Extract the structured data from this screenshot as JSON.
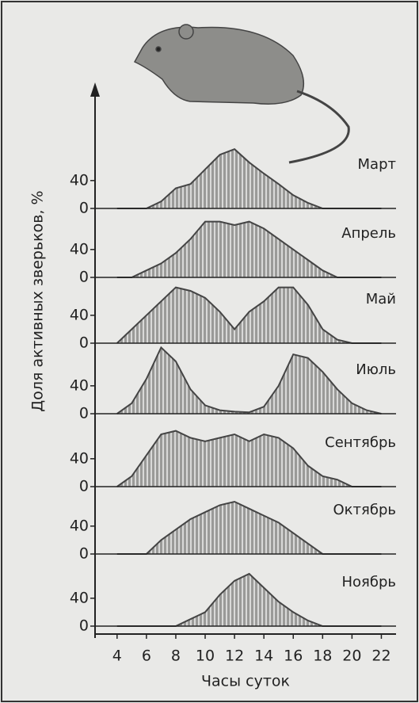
{
  "chart_data": {
    "type": "area",
    "ylabel": "Доля активных зверьков, %",
    "xlabel": "Часы суток",
    "x": [
      4,
      5,
      6,
      7,
      8,
      9,
      10,
      11,
      12,
      13,
      14,
      15,
      16,
      17,
      18,
      19,
      20,
      21,
      22
    ],
    "xlim": [
      2.5,
      23
    ],
    "xticks": [
      4,
      6,
      8,
      10,
      12,
      14,
      16,
      18,
      20,
      22
    ],
    "ylim": [
      0,
      100
    ],
    "yticks": [
      0,
      40
    ],
    "color": "#444",
    "series": [
      {
        "name": "Март",
        "values": [
          0,
          0,
          0,
          10,
          29,
          35,
          56,
          77,
          85,
          66,
          50,
          35,
          19,
          8,
          0,
          0,
          0,
          0,
          0
        ]
      },
      {
        "name": "Апрель",
        "values": [
          0,
          0,
          10,
          20,
          35,
          55,
          80,
          80,
          75,
          80,
          70,
          55,
          40,
          25,
          10,
          0,
          0,
          0,
          0
        ]
      },
      {
        "name": "Май",
        "values": [
          0,
          20,
          40,
          60,
          80,
          75,
          65,
          45,
          20,
          45,
          60,
          80,
          80,
          55,
          20,
          5,
          0,
          0,
          0
        ]
      },
      {
        "name": "Июль",
        "values": [
          0,
          15,
          50,
          95,
          75,
          35,
          12,
          5,
          3,
          2,
          10,
          40,
          85,
          80,
          60,
          35,
          15,
          5,
          0
        ]
      },
      {
        "name": "Сентябрь",
        "values": [
          0,
          15,
          45,
          75,
          80,
          70,
          65,
          70,
          75,
          65,
          75,
          70,
          55,
          30,
          15,
          10,
          0,
          0,
          0
        ]
      },
      {
        "name": "Октябрь",
        "values": [
          0,
          0,
          0,
          20,
          35,
          50,
          60,
          70,
          75,
          65,
          55,
          45,
          30,
          15,
          0,
          0,
          0,
          0,
          0
        ]
      },
      {
        "name": "Ноябрь",
        "values": [
          0,
          0,
          0,
          0,
          0,
          10,
          20,
          45,
          65,
          75,
          55,
          35,
          20,
          8,
          0,
          0,
          0,
          0,
          0
        ]
      }
    ]
  }
}
